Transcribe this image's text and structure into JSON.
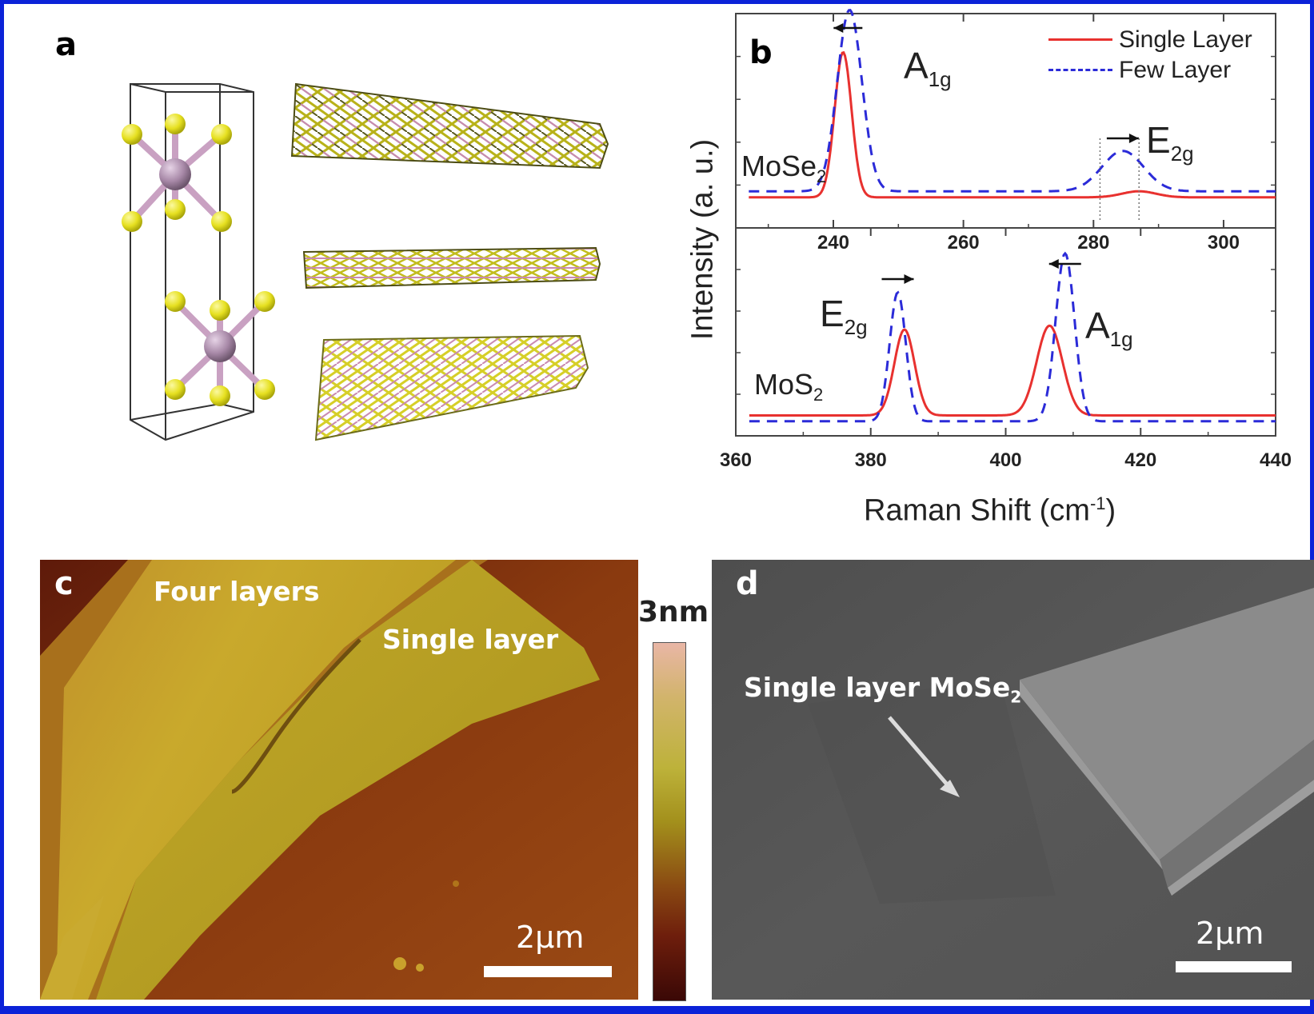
{
  "panels": {
    "a": {
      "label": "a"
    },
    "b": {
      "label": "b"
    },
    "c": {
      "label": "c",
      "four_layers": "Four layers",
      "single_layer": "Single layer",
      "scale_text": "2μm",
      "colorbar_max": "3nm"
    },
    "d": {
      "label": "d",
      "annotation_main": "Single layer MoSe",
      "annotation_sub": "2",
      "scale_text": "2μm"
    }
  },
  "colors": {
    "single_layer": "#e8312f",
    "few_layer": "#2b2bd8",
    "frame": "#0b22d8",
    "se_atom": "#e6e020",
    "mo_atom": "#a889a8"
  },
  "chart_data": [
    {
      "type": "line",
      "name": "MoSe2",
      "xlim": [
        225,
        308
      ],
      "x_ticks": [
        "240",
        "260",
        "280",
        "300"
      ],
      "x_tick_values": [
        240,
        260,
        280,
        300
      ],
      "compound": {
        "main": "MoSe",
        "sub": "2"
      },
      "peaks": [
        {
          "main": "A",
          "sub": "1g",
          "shift_direction": "left"
        },
        {
          "main": "E",
          "sub": "2g",
          "shift_direction": "right"
        }
      ],
      "series": [
        {
          "name": "Single Layer",
          "style": "solid",
          "baseline": 0.12,
          "peaks": [
            {
              "center": 241.5,
              "height": 0.72,
              "width": 1.3
            },
            {
              "center": 287,
              "height": 0.03,
              "width": 2.6
            }
          ]
        },
        {
          "name": "Few Layer",
          "style": "dashed",
          "baseline": 0.15,
          "peaks": [
            {
              "center": 242.5,
              "height": 0.9,
              "width": 1.9
            },
            {
              "center": 284.5,
              "height": 0.2,
              "width": 3.2
            }
          ]
        }
      ]
    },
    {
      "type": "line",
      "name": "MoS2",
      "xlim": [
        360,
        440
      ],
      "x_ticks": [
        "360",
        "380",
        "400",
        "420",
        "440"
      ],
      "x_tick_values": [
        360,
        380,
        400,
        420,
        440
      ],
      "compound": {
        "main": "MoS",
        "sub": "2"
      },
      "peaks": [
        {
          "main": "E",
          "sub": "2g",
          "shift_direction": "right"
        },
        {
          "main": "A",
          "sub": "1g",
          "shift_direction": "left"
        }
      ],
      "series": [
        {
          "name": "Single Layer",
          "style": "solid",
          "baseline": 0.08,
          "peaks": [
            {
              "center": 385,
              "height": 0.44,
              "width": 1.5
            },
            {
              "center": 406.5,
              "height": 0.46,
              "width": 1.9
            }
          ]
        },
        {
          "name": "Few Layer",
          "style": "dashed",
          "baseline": 0.05,
          "peaks": [
            {
              "center": 384,
              "height": 0.66,
              "width": 1.2
            },
            {
              "center": 408.8,
              "height": 0.86,
              "width": 1.4
            }
          ]
        }
      ]
    }
  ],
  "axes": {
    "ylabel": "Intensity (a. u.)",
    "xlabel_main": "Raman Shift (cm",
    "xlabel_sup": "-1",
    "xlabel_end": ")"
  },
  "legend": {
    "single": "Single Layer",
    "few": "Few Layer"
  }
}
